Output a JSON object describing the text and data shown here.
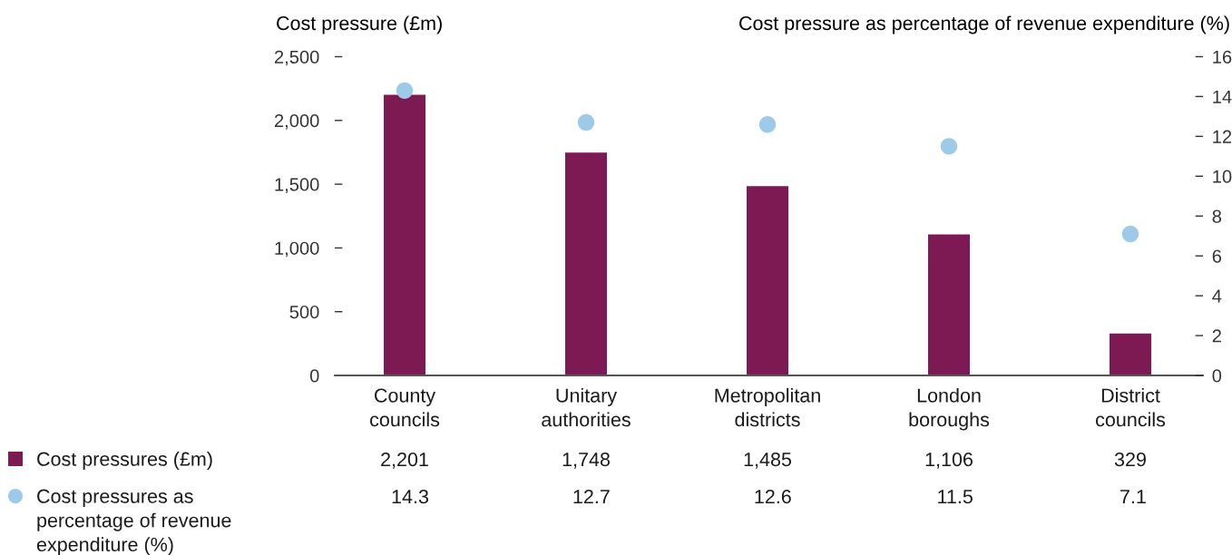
{
  "chart_data": {
    "type": "bar",
    "ylabel": "Cost pressure (£m)",
    "y2label": "Cost pressure as percentage of revenue expenditure (%)",
    "categories": [
      "County\ncouncils",
      "Unitary\nauthorities",
      "Metropolitan\ndistricts",
      "London\nboroughs",
      "District\ncouncils"
    ],
    "series": [
      {
        "name": "Cost pressures (£m)",
        "color": "#7e1a53",
        "values": [
          2201,
          1748,
          1485,
          1106,
          329
        ],
        "value_labels": [
          "2,201",
          "1,748",
          "1,485",
          "1,106",
          "329"
        ]
      },
      {
        "name": "Cost pressures as\npercentage of revenue\nexpenditure (%)",
        "type": "scatter",
        "axis": "y2",
        "marker": "circle",
        "color": "#9ccae8",
        "values": [
          14.3,
          12.7,
          12.6,
          11.5,
          7.1
        ],
        "value_labels": [
          "14.3",
          "12.7",
          "12.6",
          "11.5",
          "7.1"
        ]
      }
    ],
    "ylim": [
      0,
      2500
    ],
    "yticks": [
      0,
      500,
      {
        "value": 1000,
        "label": "1,000"
      },
      {
        "value": 1500,
        "label": "1,500"
      },
      {
        "value": 2000,
        "label": "2,000"
      },
      {
        "value": 2500,
        "label": "2,500"
      }
    ],
    "y2lim": [
      0,
      16
    ],
    "y2ticks": [
      0,
      2,
      4,
      6,
      8,
      10,
      12,
      14,
      16
    ],
    "legend": "bottom left"
  }
}
